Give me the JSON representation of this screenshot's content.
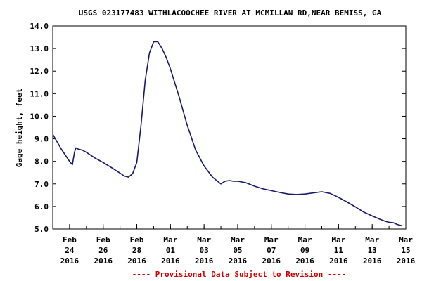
{
  "chart_data": {
    "type": "line",
    "title": "USGS 023177483 WITHLACOOCHEE RIVER AT MCMILLAN RD,NEAR BEMISS, GA",
    "ylabel": "Gage height, feet",
    "xlabel": "",
    "footer": "---- Provisional Data Subject to Revision ----",
    "ylim": [
      5.0,
      14.0
    ],
    "yticks": [
      "5.0",
      "6.0",
      "7.0",
      "8.0",
      "9.0",
      "10.0",
      "11.0",
      "12.0",
      "13.0",
      "14.0"
    ],
    "xlim": [
      "2016-02-23",
      "2016-03-15"
    ],
    "xticks": [
      {
        "date": "2016-02-24",
        "lines": [
          "Feb",
          "24",
          "2016"
        ]
      },
      {
        "date": "2016-02-26",
        "lines": [
          "Feb",
          "26",
          "2016"
        ]
      },
      {
        "date": "2016-02-28",
        "lines": [
          "Feb",
          "28",
          "2016"
        ]
      },
      {
        "date": "2016-03-01",
        "lines": [
          "Mar",
          "01",
          "2016"
        ]
      },
      {
        "date": "2016-03-03",
        "lines": [
          "Mar",
          "03",
          "2016"
        ]
      },
      {
        "date": "2016-03-05",
        "lines": [
          "Mar",
          "05",
          "2016"
        ]
      },
      {
        "date": "2016-03-07",
        "lines": [
          "Mar",
          "07",
          "2016"
        ]
      },
      {
        "date": "2016-03-09",
        "lines": [
          "Mar",
          "09",
          "2016"
        ]
      },
      {
        "date": "2016-03-11",
        "lines": [
          "Mar",
          "11",
          "2016"
        ]
      },
      {
        "date": "2016-03-13",
        "lines": [
          "Mar",
          "13",
          "2016"
        ]
      },
      {
        "date": "2016-03-15",
        "lines": [
          "Mar",
          "15",
          "2016"
        ]
      }
    ],
    "grid": false,
    "series": [
      {
        "color": "#1a1a66",
        "x": [
          "2016-02-23T00:00",
          "2016-02-23T12:00",
          "2016-02-24T00:00",
          "2016-02-24T04:00",
          "2016-02-24T07:00",
          "2016-02-24T09:00",
          "2016-02-24T12:00",
          "2016-02-24T18:00",
          "2016-02-25T00:00",
          "2016-02-25T12:00",
          "2016-02-26T00:00",
          "2016-02-26T12:00",
          "2016-02-27T00:00",
          "2016-02-27T06:00",
          "2016-02-27T12:00",
          "2016-02-27T18:00",
          "2016-02-28T00:00",
          "2016-02-28T06:00",
          "2016-02-28T12:00",
          "2016-02-28T18:00",
          "2016-02-29T00:00",
          "2016-02-29T06:00",
          "2016-02-29T12:00",
          "2016-02-29T18:00",
          "2016-03-01T00:00",
          "2016-03-01T12:00",
          "2016-03-02T00:00",
          "2016-03-02T12:00",
          "2016-03-03T00:00",
          "2016-03-03T12:00",
          "2016-03-04T00:00",
          "2016-03-04T06:00",
          "2016-03-04T12:00",
          "2016-03-04T18:00",
          "2016-03-05T00:00",
          "2016-03-05T12:00",
          "2016-03-06T00:00",
          "2016-03-06T12:00",
          "2016-03-07T00:00",
          "2016-03-07T12:00",
          "2016-03-08T00:00",
          "2016-03-08T12:00",
          "2016-03-09T00:00",
          "2016-03-09T12:00",
          "2016-03-10T00:00",
          "2016-03-10T12:00",
          "2016-03-11T00:00",
          "2016-03-11T12:00",
          "2016-03-12T00:00",
          "2016-03-12T12:00",
          "2016-03-13T00:00",
          "2016-03-13T12:00",
          "2016-03-13T18:00",
          "2016-03-14T00:00",
          "2016-03-14T06:00",
          "2016-03-14T12:00",
          "2016-03-14T18:00"
        ],
        "y": [
          9.2,
          8.55,
          8.0,
          7.85,
          8.4,
          8.6,
          8.55,
          8.5,
          8.4,
          8.15,
          7.95,
          7.72,
          7.48,
          7.35,
          7.3,
          7.45,
          7.95,
          9.6,
          11.6,
          12.8,
          13.3,
          13.3,
          13.0,
          12.6,
          12.1,
          10.9,
          9.6,
          8.5,
          7.8,
          7.3,
          7.0,
          7.12,
          7.15,
          7.12,
          7.12,
          7.05,
          6.9,
          6.78,
          6.7,
          6.62,
          6.55,
          6.53,
          6.55,
          6.6,
          6.65,
          6.58,
          6.4,
          6.2,
          5.98,
          5.75,
          5.58,
          5.42,
          5.35,
          5.3,
          5.28,
          5.2,
          5.15
        ]
      }
    ]
  }
}
